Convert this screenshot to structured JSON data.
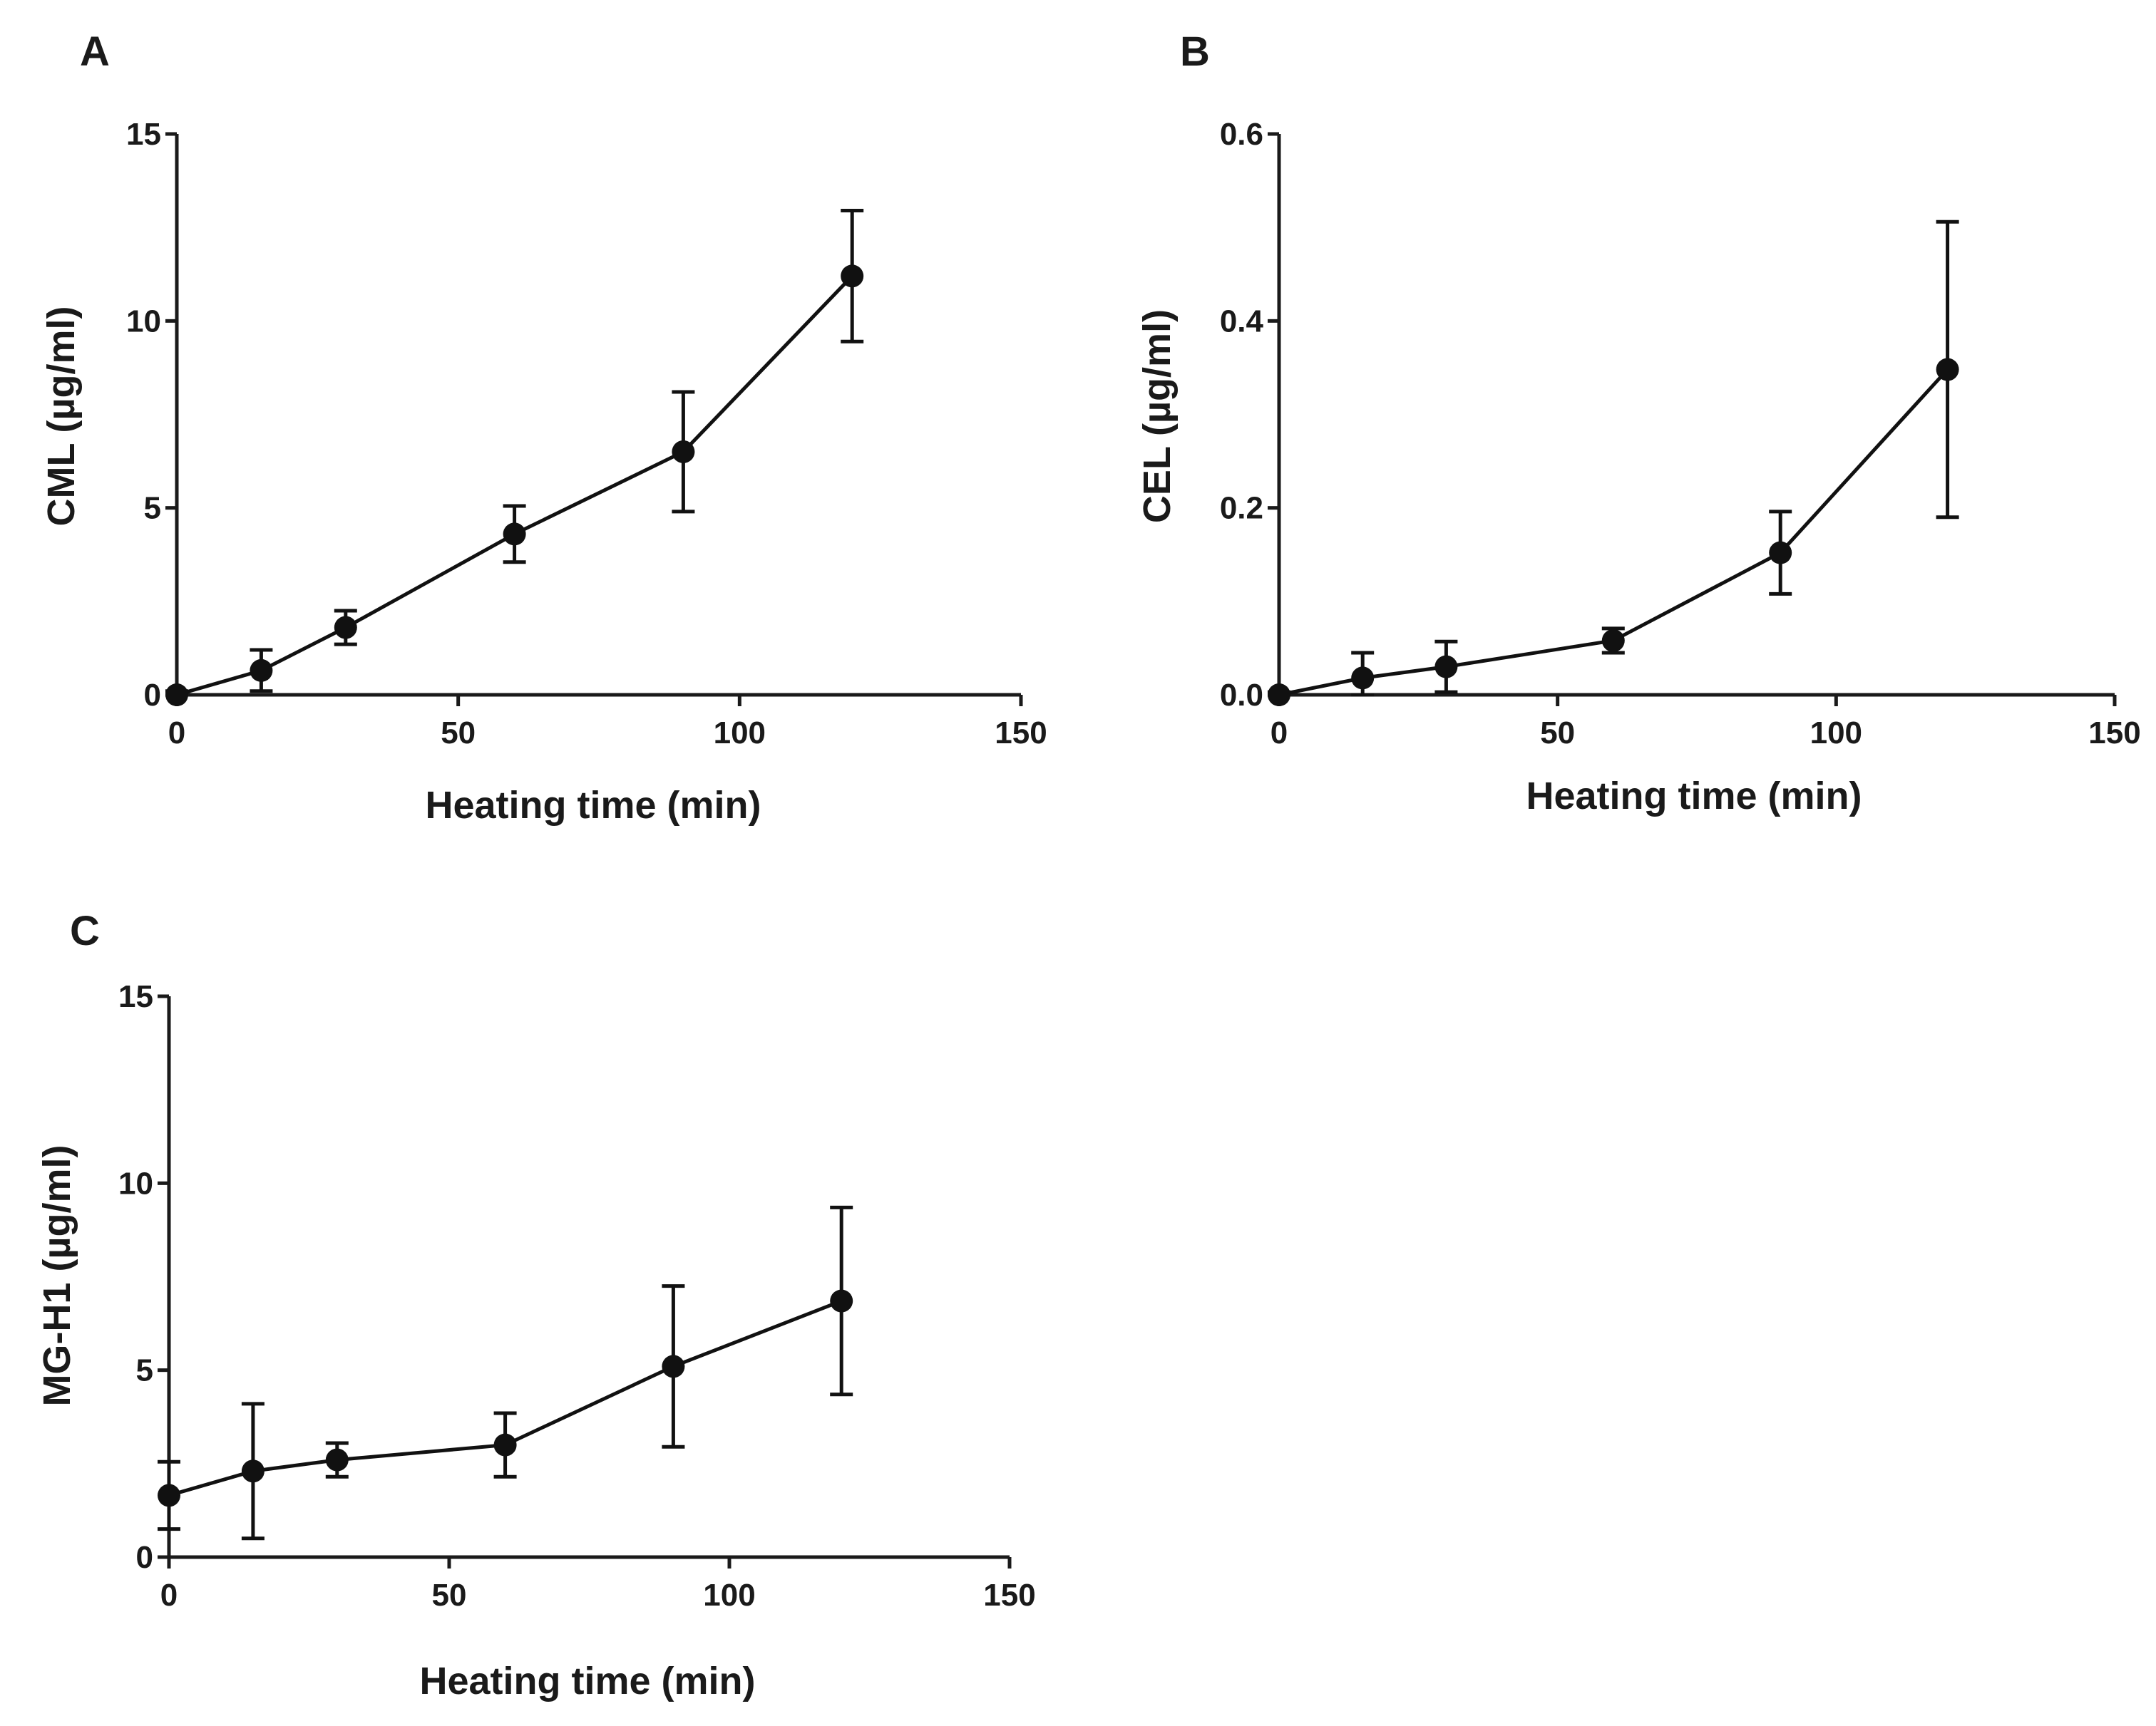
{
  "chart_data": [
    {
      "type": "line",
      "panel": "A",
      "xlabel": "Heating time (min)",
      "ylabel": "CML (µg/ml)",
      "xlim": [
        0,
        150
      ],
      "ylim": [
        0,
        15
      ],
      "xticks": [
        "0",
        "50",
        "100",
        "150"
      ],
      "yticks": [
        "0",
        "5",
        "10",
        "15"
      ],
      "grid": false,
      "marker": "filled-circle",
      "color": "#111111",
      "series": [
        {
          "x": [
            0,
            15,
            30,
            60,
            90,
            120
          ],
          "y": [
            0,
            0.65,
            1.8,
            4.3,
            6.5,
            11.2
          ],
          "error": [
            0.1,
            0.55,
            0.45,
            0.75,
            1.6,
            1.75
          ]
        }
      ]
    },
    {
      "type": "line",
      "panel": "B",
      "xlabel": "Heating time (min)",
      "ylabel": "CEL (µg/ml)",
      "xlim": [
        0,
        150
      ],
      "ylim": [
        0,
        0.6
      ],
      "xticks": [
        "0",
        "50",
        "100",
        "150"
      ],
      "yticks": [
        "0.0",
        "0.2",
        "0.4",
        "0.6"
      ],
      "grid": false,
      "marker": "filled-circle",
      "color": "#111111",
      "series": [
        {
          "x": [
            0,
            15,
            30,
            60,
            90,
            120
          ],
          "y": [
            0.0,
            0.018,
            0.03,
            0.058,
            0.152,
            0.348
          ],
          "error": [
            0.003,
            0.027,
            0.027,
            0.013,
            0.044,
            0.158
          ]
        }
      ]
    },
    {
      "type": "line",
      "panel": "C",
      "xlabel": "Heating time (min)",
      "ylabel": "MG-H1 (µg/ml)",
      "xlim": [
        0,
        150
      ],
      "ylim": [
        0,
        15
      ],
      "xticks": [
        "0",
        "50",
        "100",
        "150"
      ],
      "yticks": [
        "0",
        "5",
        "10",
        "15"
      ],
      "grid": false,
      "marker": "filled-circle",
      "color": "#111111",
      "series": [
        {
          "x": [
            0,
            15,
            30,
            60,
            90,
            120
          ],
          "y": [
            1.65,
            2.3,
            2.6,
            3.0,
            5.1,
            6.85
          ],
          "error": [
            0.9,
            1.8,
            0.45,
            0.85,
            2.15,
            2.5
          ]
        }
      ]
    }
  ]
}
